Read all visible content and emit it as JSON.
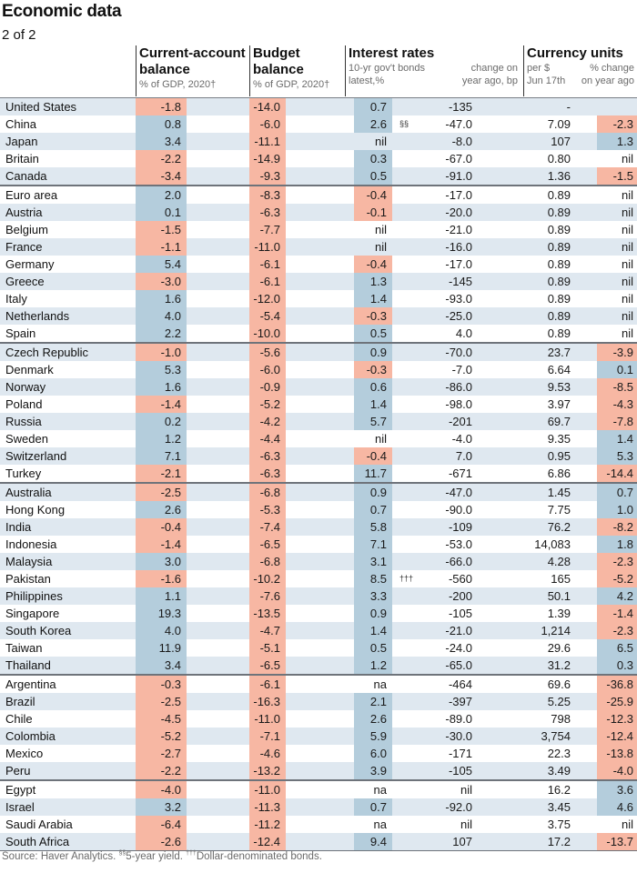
{
  "title": "Economic data",
  "subtitle": "2 of 2",
  "colors": {
    "negative": "#f7b7a3",
    "positive": "#b4cddc",
    "stripe": "#dfe8f0",
    "rule": "#6e737a"
  },
  "headers": {
    "current_account": {
      "title_line1": "Current-account",
      "title_line2": "balance",
      "sub": "% of GDP, 2020†"
    },
    "budget": {
      "title_line1": "Budget",
      "title_line2": "balance",
      "sub": "% of GDP, 2020†"
    },
    "interest": {
      "title": "Interest rates",
      "sub1_line1": "10-yr gov't bonds",
      "sub1_line2": "latest,%",
      "sub2_line1": "change on",
      "sub2_line2": "year ago, bp"
    },
    "currency": {
      "title": "Currency units",
      "sub1_line1": "per $",
      "sub1_line2": "Jun 17th",
      "sub2_line1": "% change",
      "sub2_line2": "on year ago"
    }
  },
  "rows": [
    {
      "country": "United States",
      "ca": "-1.8",
      "bb": "-14.0",
      "ir": "0.7",
      "irfn": "",
      "ch": "-135",
      "fx": "-",
      "fxc": ""
    },
    {
      "country": "China",
      "ca": "0.8",
      "bb": "-6.0",
      "ir": "2.6",
      "irfn": "§§",
      "ch": "-47.0",
      "fx": "7.09",
      "fxc": "-2.3"
    },
    {
      "country": "Japan",
      "ca": "3.4",
      "bb": "-11.1",
      "ir": "nil",
      "irfn": "",
      "ch": "-8.0",
      "fx": "107",
      "fxc": "1.3"
    },
    {
      "country": "Britain",
      "ca": "-2.2",
      "bb": "-14.9",
      "ir": "0.3",
      "irfn": "",
      "ch": "-67.0",
      "fx": "0.80",
      "fxc": "nil"
    },
    {
      "country": "Canada",
      "ca": "-3.4",
      "bb": "-9.3",
      "ir": "0.5",
      "irfn": "",
      "ch": "-91.0",
      "fx": "1.36",
      "fxc": "-1.5"
    },
    {
      "country": "Euro area",
      "ca": "2.0",
      "bb": "-8.3",
      "ir": "-0.4",
      "irfn": "",
      "ch": "-17.0",
      "fx": "0.89",
      "fxc": "nil",
      "grp": true
    },
    {
      "country": "Austria",
      "ca": "0.1",
      "bb": "-6.3",
      "ir": "-0.1",
      "irfn": "",
      "ch": "-20.0",
      "fx": "0.89",
      "fxc": "nil"
    },
    {
      "country": "Belgium",
      "ca": "-1.5",
      "bb": "-7.7",
      "ir": "nil",
      "irfn": "",
      "ch": "-21.0",
      "fx": "0.89",
      "fxc": "nil"
    },
    {
      "country": "France",
      "ca": "-1.1",
      "bb": "-11.0",
      "ir": "nil",
      "irfn": "",
      "ch": "-16.0",
      "fx": "0.89",
      "fxc": "nil"
    },
    {
      "country": "Germany",
      "ca": "5.4",
      "bb": "-6.1",
      "ir": "-0.4",
      "irfn": "",
      "ch": "-17.0",
      "fx": "0.89",
      "fxc": "nil"
    },
    {
      "country": "Greece",
      "ca": "-3.0",
      "bb": "-6.1",
      "ir": "1.3",
      "irfn": "",
      "ch": "-145",
      "fx": "0.89",
      "fxc": "nil"
    },
    {
      "country": "Italy",
      "ca": "1.6",
      "bb": "-12.0",
      "ir": "1.4",
      "irfn": "",
      "ch": "-93.0",
      "fx": "0.89",
      "fxc": "nil"
    },
    {
      "country": "Netherlands",
      "ca": "4.0",
      "bb": "-5.4",
      "ir": "-0.3",
      "irfn": "",
      "ch": "-25.0",
      "fx": "0.89",
      "fxc": "nil"
    },
    {
      "country": "Spain",
      "ca": "2.2",
      "bb": "-10.0",
      "ir": "0.5",
      "irfn": "",
      "ch": "4.0",
      "fx": "0.89",
      "fxc": "nil"
    },
    {
      "country": "Czech Republic",
      "ca": "-1.0",
      "bb": "-5.6",
      "ir": "0.9",
      "irfn": "",
      "ch": "-70.0",
      "fx": "23.7",
      "fxc": "-3.9",
      "grp": true
    },
    {
      "country": "Denmark",
      "ca": "5.3",
      "bb": "-6.0",
      "ir": "-0.3",
      "irfn": "",
      "ch": "-7.0",
      "fx": "6.64",
      "fxc": "0.1"
    },
    {
      "country": "Norway",
      "ca": "1.6",
      "bb": "-0.9",
      "ir": "0.6",
      "irfn": "",
      "ch": "-86.0",
      "fx": "9.53",
      "fxc": "-8.5"
    },
    {
      "country": "Poland",
      "ca": "-1.4",
      "bb": "-5.2",
      "ir": "1.4",
      "irfn": "",
      "ch": "-98.0",
      "fx": "3.97",
      "fxc": "-4.3"
    },
    {
      "country": "Russia",
      "ca": "0.2",
      "bb": "-4.2",
      "ir": "5.7",
      "irfn": "",
      "ch": "-201",
      "fx": "69.7",
      "fxc": "-7.8"
    },
    {
      "country": "Sweden",
      "ca": "1.2",
      "bb": "-4.4",
      "ir": "nil",
      "irfn": "",
      "ch": "-4.0",
      "fx": "9.35",
      "fxc": "1.4"
    },
    {
      "country": "Switzerland",
      "ca": "7.1",
      "bb": "-6.3",
      "ir": "-0.4",
      "irfn": "",
      "ch": "7.0",
      "fx": "0.95",
      "fxc": "5.3"
    },
    {
      "country": "Turkey",
      "ca": "-2.1",
      "bb": "-6.3",
      "ir": "11.7",
      "irfn": "",
      "ch": "-671",
      "fx": "6.86",
      "fxc": "-14.4"
    },
    {
      "country": "Australia",
      "ca": "-2.5",
      "bb": "-6.8",
      "ir": "0.9",
      "irfn": "",
      "ch": "-47.0",
      "fx": "1.45",
      "fxc": "0.7",
      "grp": true
    },
    {
      "country": "Hong Kong",
      "ca": "2.6",
      "bb": "-5.3",
      "ir": "0.7",
      "irfn": "",
      "ch": "-90.0",
      "fx": "7.75",
      "fxc": "1.0"
    },
    {
      "country": "India",
      "ca": "-0.4",
      "bb": "-7.4",
      "ir": "5.8",
      "irfn": "",
      "ch": "-109",
      "fx": "76.2",
      "fxc": "-8.2"
    },
    {
      "country": "Indonesia",
      "ca": "-1.4",
      "bb": "-6.5",
      "ir": "7.1",
      "irfn": "",
      "ch": "-53.0",
      "fx": "14,083",
      "fxc": "1.8"
    },
    {
      "country": "Malaysia",
      "ca": "3.0",
      "bb": "-6.8",
      "ir": "3.1",
      "irfn": "",
      "ch": "-66.0",
      "fx": "4.28",
      "fxc": "-2.3"
    },
    {
      "country": "Pakistan",
      "ca": "-1.6",
      "bb": "-10.2",
      "ir": "8.5",
      "irfn": "†††",
      "ch": "-560",
      "fx": "165",
      "fxc": "-5.2"
    },
    {
      "country": "Philippines",
      "ca": "1.1",
      "bb": "-7.6",
      "ir": "3.3",
      "irfn": "",
      "ch": "-200",
      "fx": "50.1",
      "fxc": "4.2"
    },
    {
      "country": "Singapore",
      "ca": "19.3",
      "bb": "-13.5",
      "ir": "0.9",
      "irfn": "",
      "ch": "-105",
      "fx": "1.39",
      "fxc": "-1.4"
    },
    {
      "country": "South Korea",
      "ca": "4.0",
      "bb": "-4.7",
      "ir": "1.4",
      "irfn": "",
      "ch": "-21.0",
      "fx": "1,214",
      "fxc": "-2.3"
    },
    {
      "country": "Taiwan",
      "ca": "11.9",
      "bb": "-5.1",
      "ir": "0.5",
      "irfn": "",
      "ch": "-24.0",
      "fx": "29.6",
      "fxc": "6.5"
    },
    {
      "country": "Thailand",
      "ca": "3.4",
      "bb": "-6.5",
      "ir": "1.2",
      "irfn": "",
      "ch": "-65.0",
      "fx": "31.2",
      "fxc": "0.3"
    },
    {
      "country": "Argentina",
      "ca": "-0.3",
      "bb": "-6.1",
      "ir": "na",
      "irfn": "",
      "ch": "-464",
      "fx": "69.6",
      "fxc": "-36.8",
      "grp": true
    },
    {
      "country": "Brazil",
      "ca": "-2.5",
      "bb": "-16.3",
      "ir": "2.1",
      "irfn": "",
      "ch": "-397",
      "fx": "5.25",
      "fxc": "-25.9"
    },
    {
      "country": "Chile",
      "ca": "-4.5",
      "bb": "-11.0",
      "ir": "2.6",
      "irfn": "",
      "ch": "-89.0",
      "fx": "798",
      "fxc": "-12.3"
    },
    {
      "country": "Colombia",
      "ca": "-5.2",
      "bb": "-7.1",
      "ir": "5.9",
      "irfn": "",
      "ch": "-30.0",
      "fx": "3,754",
      "fxc": "-12.4"
    },
    {
      "country": "Mexico",
      "ca": "-2.7",
      "bb": "-4.6",
      "ir": "6.0",
      "irfn": "",
      "ch": "-171",
      "fx": "22.3",
      "fxc": "-13.8"
    },
    {
      "country": "Peru",
      "ca": "-2.2",
      "bb": "-13.2",
      "ir": "3.9",
      "irfn": "",
      "ch": "-105",
      "fx": "3.49",
      "fxc": "-4.0"
    },
    {
      "country": "Egypt",
      "ca": "-4.0",
      "bb": "-11.0",
      "ir": "na",
      "irfn": "",
      "ch": "nil",
      "fx": "16.2",
      "fxc": "3.6",
      "grp": true
    },
    {
      "country": "Israel",
      "ca": "3.2",
      "bb": "-11.3",
      "ir": "0.7",
      "irfn": "",
      "ch": "-92.0",
      "fx": "3.45",
      "fxc": "4.6"
    },
    {
      "country": "Saudi Arabia",
      "ca": "-6.4",
      "bb": "-11.2",
      "ir": "na",
      "irfn": "",
      "ch": "nil",
      "fx": "3.75",
      "fxc": "nil"
    },
    {
      "country": "South Africa",
      "ca": "-2.6",
      "bb": "-12.4",
      "ir": "9.4",
      "irfn": "",
      "ch": "107",
      "fx": "17.2",
      "fxc": "-13.7"
    }
  ],
  "source": {
    "text1": "Source: Haver Analytics. ",
    "fn1_mark": "§§",
    "fn1_text": "5-year yield. ",
    "fn2_mark": "†††",
    "fn2_text": "Dollar-denominated bonds."
  }
}
